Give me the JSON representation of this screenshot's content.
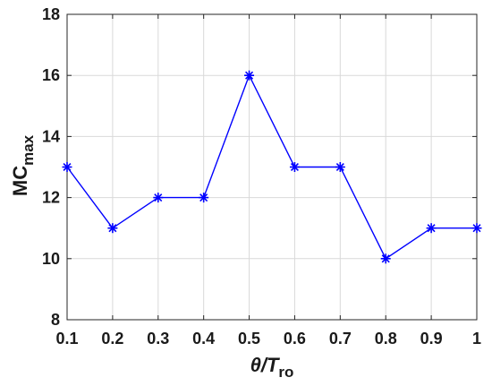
{
  "chart_data": {
    "type": "line",
    "x": [
      0.1,
      0.2,
      0.3,
      0.4,
      0.5,
      0.6,
      0.7,
      0.8,
      0.9,
      1.0
    ],
    "x_tick_labels": [
      "0.1",
      "0.2",
      "0.3",
      "0.4",
      "0.5",
      "0.6",
      "0.7",
      "0.8",
      "0.9",
      "1"
    ],
    "y_ticks": [
      8,
      10,
      12,
      14,
      16,
      18
    ],
    "y_tick_labels": [
      "8",
      "10",
      "12",
      "14",
      "16",
      "18"
    ],
    "series": [
      {
        "values": [
          13,
          11,
          12,
          12,
          16,
          13,
          13,
          10,
          11,
          11
        ]
      }
    ],
    "xlim": [
      0.1,
      1.0
    ],
    "ylim": [
      8,
      18
    ],
    "xlabel": {
      "main": "θ/",
      "italic": "T",
      "sub": "ro"
    },
    "ylabel": {
      "main": "MC",
      "sub": "max"
    },
    "title": "",
    "grid": true,
    "marker": "asterisk",
    "colors": {
      "series": "#0000ff",
      "grid": "#d9d9d9",
      "axis": "#262626"
    }
  }
}
